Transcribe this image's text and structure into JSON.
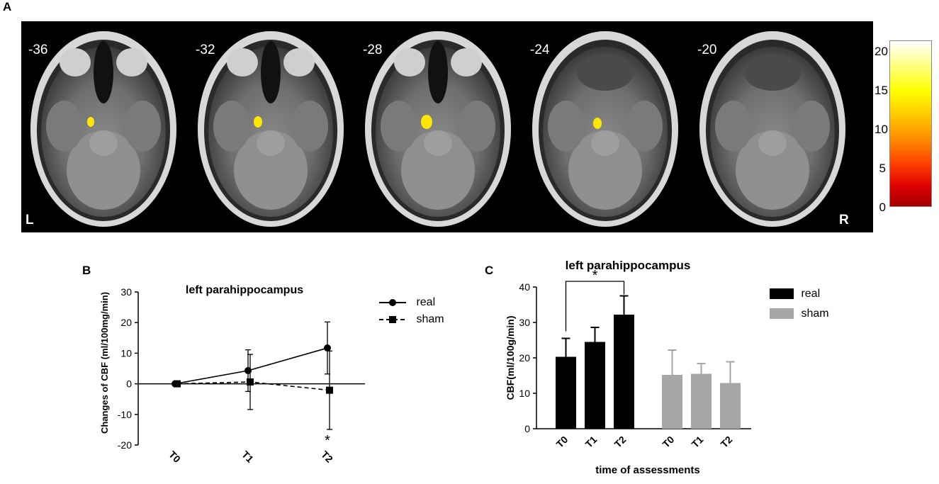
{
  "panel_labels": {
    "a": "A",
    "b": "B",
    "c": "C"
  },
  "panel_a": {
    "slices": [
      "-36",
      "-32",
      "-28",
      "-24",
      "-20"
    ],
    "left_label": "L",
    "right_label": "R",
    "colorbar": {
      "ticks": [
        "20",
        "15",
        "10",
        "5",
        "0"
      ],
      "range": [
        0,
        21
      ],
      "colors": [
        "#a30000",
        "#ff3c00",
        "#ffc800",
        "#ffff00",
        "#ffffff"
      ]
    },
    "blob_color": "#ffe600"
  },
  "chart_data": [
    {
      "type": "line",
      "title": "left parahippocampus",
      "ylabel": "Changes of CBF (ml/100mg/min)",
      "xlabel": "",
      "categories": [
        "T0",
        "T1",
        "T2"
      ],
      "ylim": [
        -20,
        30
      ],
      "yticks": [
        "30",
        "20",
        "10",
        "0",
        "-10",
        "-20"
      ],
      "series": [
        {
          "name": "real",
          "values": [
            0,
            4.3,
            11.7
          ],
          "errors": [
            0.5,
            6.8,
            8.5
          ],
          "marker": "circle",
          "line": "solid"
        },
        {
          "name": "sham",
          "values": [
            0,
            0.6,
            -2.1
          ],
          "errors": [
            0.5,
            9.0,
            12.8
          ],
          "marker": "square",
          "line": "dashed"
        }
      ],
      "annotation": "*",
      "legend_position": "right"
    },
    {
      "type": "bar",
      "title": "left parahippocampus",
      "ylabel": "CBF(ml/100g/min)",
      "xlabel": "time of assessments",
      "categories": [
        "T0",
        "T1",
        "T2"
      ],
      "ylim": [
        0,
        40
      ],
      "yticks": [
        "40",
        "30",
        "20",
        "10",
        "0"
      ],
      "series": [
        {
          "name": "real",
          "values": [
            20.3,
            24.5,
            32.2
          ],
          "errors": [
            5.2,
            4.1,
            5.3
          ],
          "color": "#000000"
        },
        {
          "name": "sham",
          "values": [
            15.2,
            15.5,
            12.9
          ],
          "errors": [
            7.0,
            2.9,
            6.0
          ],
          "color": "#a6a6a6"
        }
      ],
      "significance": {
        "from": "T0",
        "to": "T2",
        "series": "real",
        "mark": "*"
      },
      "legend_position": "right"
    }
  ]
}
